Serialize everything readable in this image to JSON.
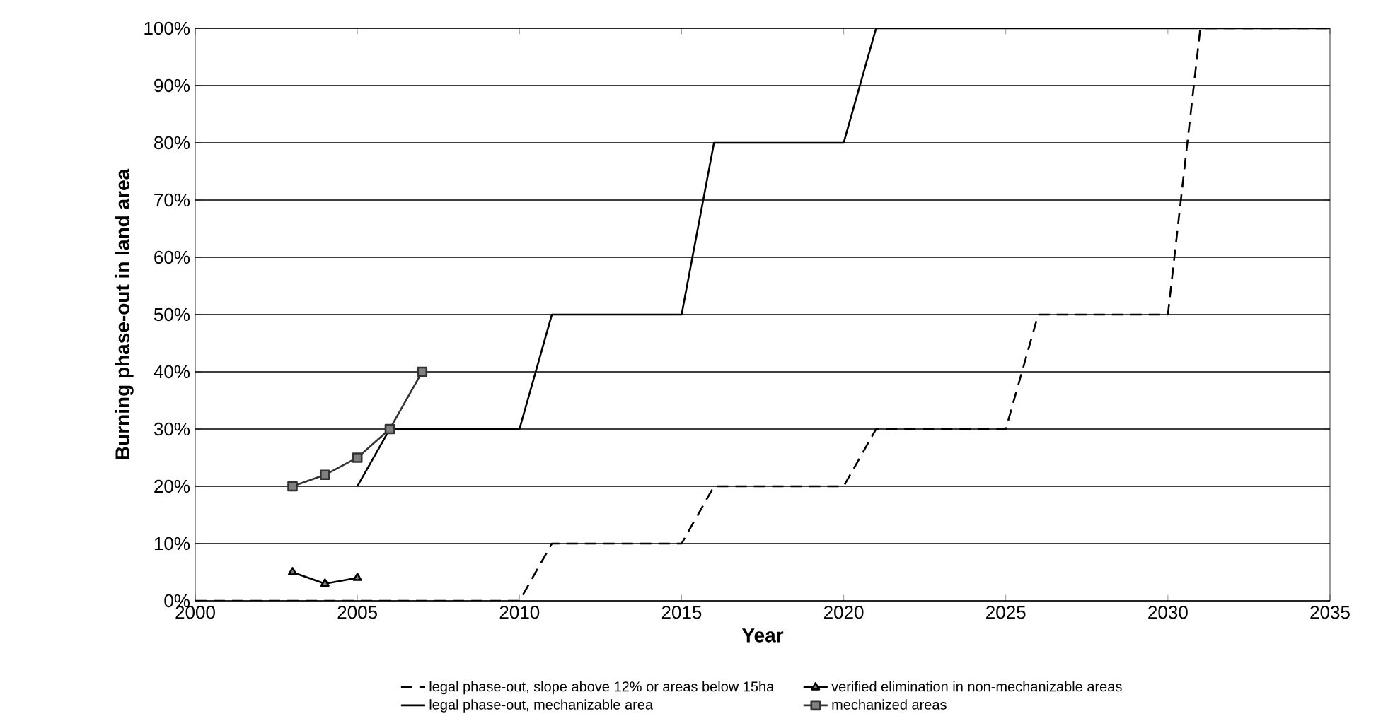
{
  "chart_data": {
    "type": "line",
    "xlabel": "Year",
    "ylabel": "Burning phase-out in land area",
    "xlim": [
      2000,
      2035
    ],
    "xticks": [
      2000,
      2005,
      2010,
      2015,
      2020,
      2025,
      2030,
      2035
    ],
    "ylim": [
      0,
      100
    ],
    "yticks": [
      {
        "value": 0,
        "label": "0%"
      },
      {
        "value": 10,
        "label": "10%"
      },
      {
        "value": 20,
        "label": "20%"
      },
      {
        "value": 30,
        "label": "30%"
      },
      {
        "value": 40,
        "label": "40%"
      },
      {
        "value": 50,
        "label": "50%"
      },
      {
        "value": 60,
        "label": "60%"
      },
      {
        "value": 70,
        "label": "70%"
      },
      {
        "value": 80,
        "label": "80%"
      },
      {
        "value": 90,
        "label": "90%"
      },
      {
        "value": 100,
        "label": "100%"
      }
    ],
    "grid": "y",
    "legend": "bottom",
    "series": [
      {
        "name": "legal phase-out, slope above 12% or areas below 15ha",
        "color": "#000000",
        "line_style": "dashed",
        "x": [
          2000,
          2010,
          2011,
          2015,
          2016,
          2020,
          2021,
          2025,
          2026,
          2030,
          2031,
          2035
        ],
        "values": [
          0,
          0,
          10,
          10,
          20,
          20,
          30,
          30,
          50,
          50,
          100,
          100
        ]
      },
      {
        "name": "verified elimination in non-mechanizable areas",
        "color": "#000000",
        "marker": "triangle",
        "x": [
          2003,
          2004,
          2005
        ],
        "values": [
          5,
          3,
          4
        ]
      },
      {
        "name": "legal phase-out, mechanizable area",
        "color": "#000000",
        "line_style": "solid",
        "x": [
          2005,
          2006,
          2010,
          2011,
          2015,
          2016,
          2020,
          2021,
          2035
        ],
        "values": [
          20,
          30,
          30,
          50,
          50,
          80,
          80,
          100,
          100
        ]
      },
      {
        "name": "mechanized areas",
        "color": "#333333",
        "marker": "square",
        "x": [
          2003,
          2004,
          2005,
          2006,
          2007
        ],
        "values": [
          20,
          22,
          25,
          30,
          40
        ]
      }
    ]
  }
}
